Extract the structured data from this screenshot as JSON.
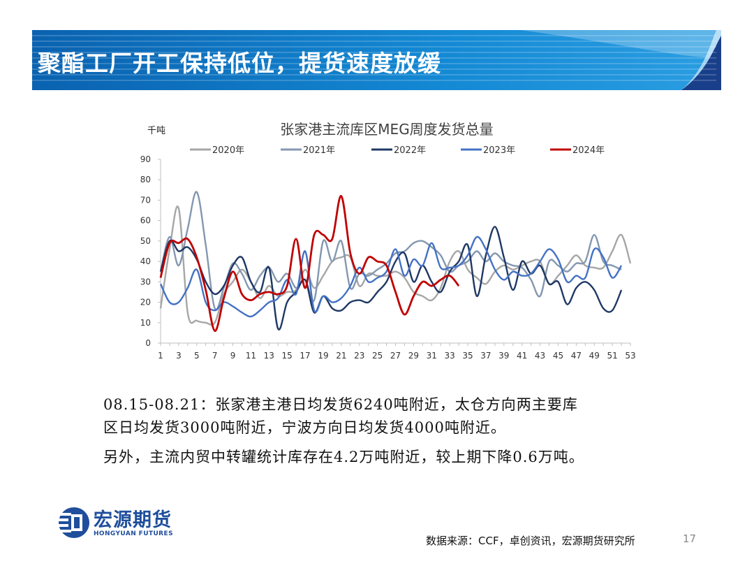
{
  "slide": {
    "title": "聚酯工厂开工保持低位，提货速度放缓",
    "colors": {
      "banner_dark": "#0a5ea8",
      "banner_light": "#1e8fd8",
      "banner_accent": "#1a3f8a"
    }
  },
  "chart_data": {
    "type": "line",
    "title": "张家港主流库区MEG周度发货总量",
    "ylabel": "千吨",
    "xlabel": "",
    "ylim": [
      0,
      90
    ],
    "yticks": [
      0,
      10,
      20,
      30,
      40,
      50,
      60,
      70,
      80,
      90
    ],
    "xlim": [
      1,
      53
    ],
    "xticks": [
      1,
      3,
      5,
      7,
      9,
      11,
      13,
      15,
      17,
      19,
      21,
      23,
      25,
      27,
      29,
      31,
      33,
      35,
      37,
      39,
      41,
      43,
      45,
      47,
      49,
      51,
      53
    ],
    "legend_position": "top",
    "series": [
      {
        "name": "2020年",
        "color": "#a6a6a6",
        "x": [
          1,
          2,
          3,
          4,
          5,
          6,
          7,
          8,
          9,
          10,
          11,
          12,
          13,
          14,
          15,
          16,
          17,
          18,
          19,
          20,
          21,
          22,
          23,
          24,
          25,
          26,
          27,
          28,
          29,
          30,
          31,
          32,
          33,
          34,
          35,
          36,
          37,
          38,
          39,
          40,
          41,
          42,
          43,
          44,
          45,
          46,
          47,
          48,
          49,
          50,
          51,
          52,
          53
        ],
        "values": [
          17,
          46,
          66,
          15,
          11,
          10,
          10,
          24,
          30,
          36,
          30,
          22,
          28,
          23,
          25,
          26,
          36,
          27,
          33,
          40,
          42,
          42,
          28,
          34,
          33,
          33,
          35,
          32,
          25,
          23,
          21,
          27,
          40,
          45,
          36,
          32,
          29,
          35,
          38,
          36,
          38,
          40,
          40,
          29,
          33,
          38,
          43,
          38,
          37,
          37,
          45,
          53,
          39
        ]
      },
      {
        "name": "2021年",
        "color": "#8497b0",
        "x": [
          1,
          2,
          3,
          4,
          5,
          6,
          7,
          8,
          9,
          10,
          11,
          12,
          13,
          14,
          15,
          16,
          17,
          18,
          19,
          20,
          21,
          22,
          23,
          24,
          25,
          26,
          27,
          28,
          29,
          30,
          31,
          32,
          33,
          34,
          35,
          36,
          37,
          38,
          39,
          40,
          41,
          42,
          43,
          44,
          45,
          46,
          47,
          48,
          49,
          50,
          51,
          52
        ],
        "values": [
          35,
          52,
          38,
          56,
          74,
          48,
          17,
          27,
          39,
          34,
          26,
          33,
          37,
          30,
          34,
          27,
          31,
          21,
          50,
          40,
          50,
          27,
          34,
          33,
          36,
          39,
          44,
          45,
          49,
          50,
          47,
          43,
          35,
          38,
          40,
          45,
          40,
          44,
          40,
          38,
          37,
          31,
          23,
          40,
          38,
          35,
          39,
          40,
          53,
          40,
          38,
          36
        ]
      },
      {
        "name": "2022年",
        "color": "#1f3864",
        "x": [
          1,
          2,
          3,
          4,
          5,
          6,
          7,
          8,
          9,
          10,
          11,
          12,
          13,
          14,
          15,
          16,
          17,
          18,
          19,
          20,
          21,
          22,
          23,
          24,
          25,
          26,
          27,
          28,
          29,
          30,
          31,
          32,
          33,
          34,
          35,
          36,
          37,
          38,
          39,
          40,
          41,
          42,
          43,
          44,
          45,
          46,
          47,
          48,
          49,
          50,
          51,
          52
        ],
        "values": [
          35,
          50,
          45,
          47,
          41,
          30,
          24,
          28,
          38,
          42,
          30,
          25,
          37,
          7,
          20,
          25,
          31,
          15,
          23,
          17,
          16,
          20,
          21,
          20,
          25,
          30,
          40,
          44,
          30,
          38,
          30,
          25,
          35,
          40,
          48,
          23,
          43,
          57,
          42,
          26,
          40,
          34,
          38,
          29,
          30,
          19,
          27,
          30,
          26,
          17,
          16,
          26
        ]
      },
      {
        "name": "2023年",
        "color": "#4472c4",
        "x": [
          1,
          2,
          3,
          4,
          5,
          6,
          7,
          8,
          9,
          10,
          11,
          12,
          13,
          14,
          15,
          16,
          17,
          18,
          19,
          20,
          21,
          22,
          23,
          24,
          25,
          26,
          27,
          28,
          29,
          30,
          31,
          32,
          33,
          34,
          35,
          36,
          37,
          38,
          39,
          40,
          41,
          42,
          43,
          44,
          45,
          46,
          47,
          48,
          49,
          50,
          51,
          52
        ],
        "values": [
          29,
          20,
          20,
          27,
          36,
          20,
          16,
          20,
          18,
          15,
          13,
          16,
          20,
          22,
          31,
          24,
          45,
          16,
          23,
          20,
          22,
          28,
          37,
          30,
          32,
          35,
          46,
          33,
          41,
          38,
          49,
          37,
          37,
          38,
          43,
          52,
          46,
          36,
          31,
          35,
          33,
          34,
          40,
          46,
          41,
          30,
          33,
          32,
          46,
          42,
          32,
          38
        ]
      },
      {
        "name": "2024年",
        "color": "#c00000",
        "x": [
          1,
          2,
          3,
          4,
          5,
          6,
          7,
          8,
          9,
          10,
          11,
          12,
          13,
          14,
          15,
          16,
          17,
          18,
          19,
          20,
          21,
          22,
          23,
          24,
          25,
          26,
          27,
          28,
          29,
          30,
          31,
          32,
          33,
          34
        ],
        "values": [
          32,
          49,
          49,
          51,
          42,
          26,
          6,
          22,
          35,
          24,
          21,
          24,
          25,
          24,
          28,
          51,
          27,
          53,
          53,
          51,
          72,
          44,
          34,
          42,
          40,
          38,
          25,
          14,
          23,
          30,
          28,
          31,
          33,
          28
        ]
      }
    ]
  },
  "notes": {
    "line1": "08.15-08.21：张家港主港日均发货6240吨附近，太仓方向两主要库",
    "line2": "区日均发货3000吨附近，宁波方向日均发货4000吨附近。",
    "line3": "另外，主流内贸中转罐统计库存在4.2万吨附近，较上期下降0.6万吨。"
  },
  "footer": {
    "logo_cn": "宏源期货",
    "logo_en": "HONGYUAN FUTURES",
    "source": "数据来源：CCF，卓创资讯，宏源期货研究所",
    "page": "17"
  }
}
